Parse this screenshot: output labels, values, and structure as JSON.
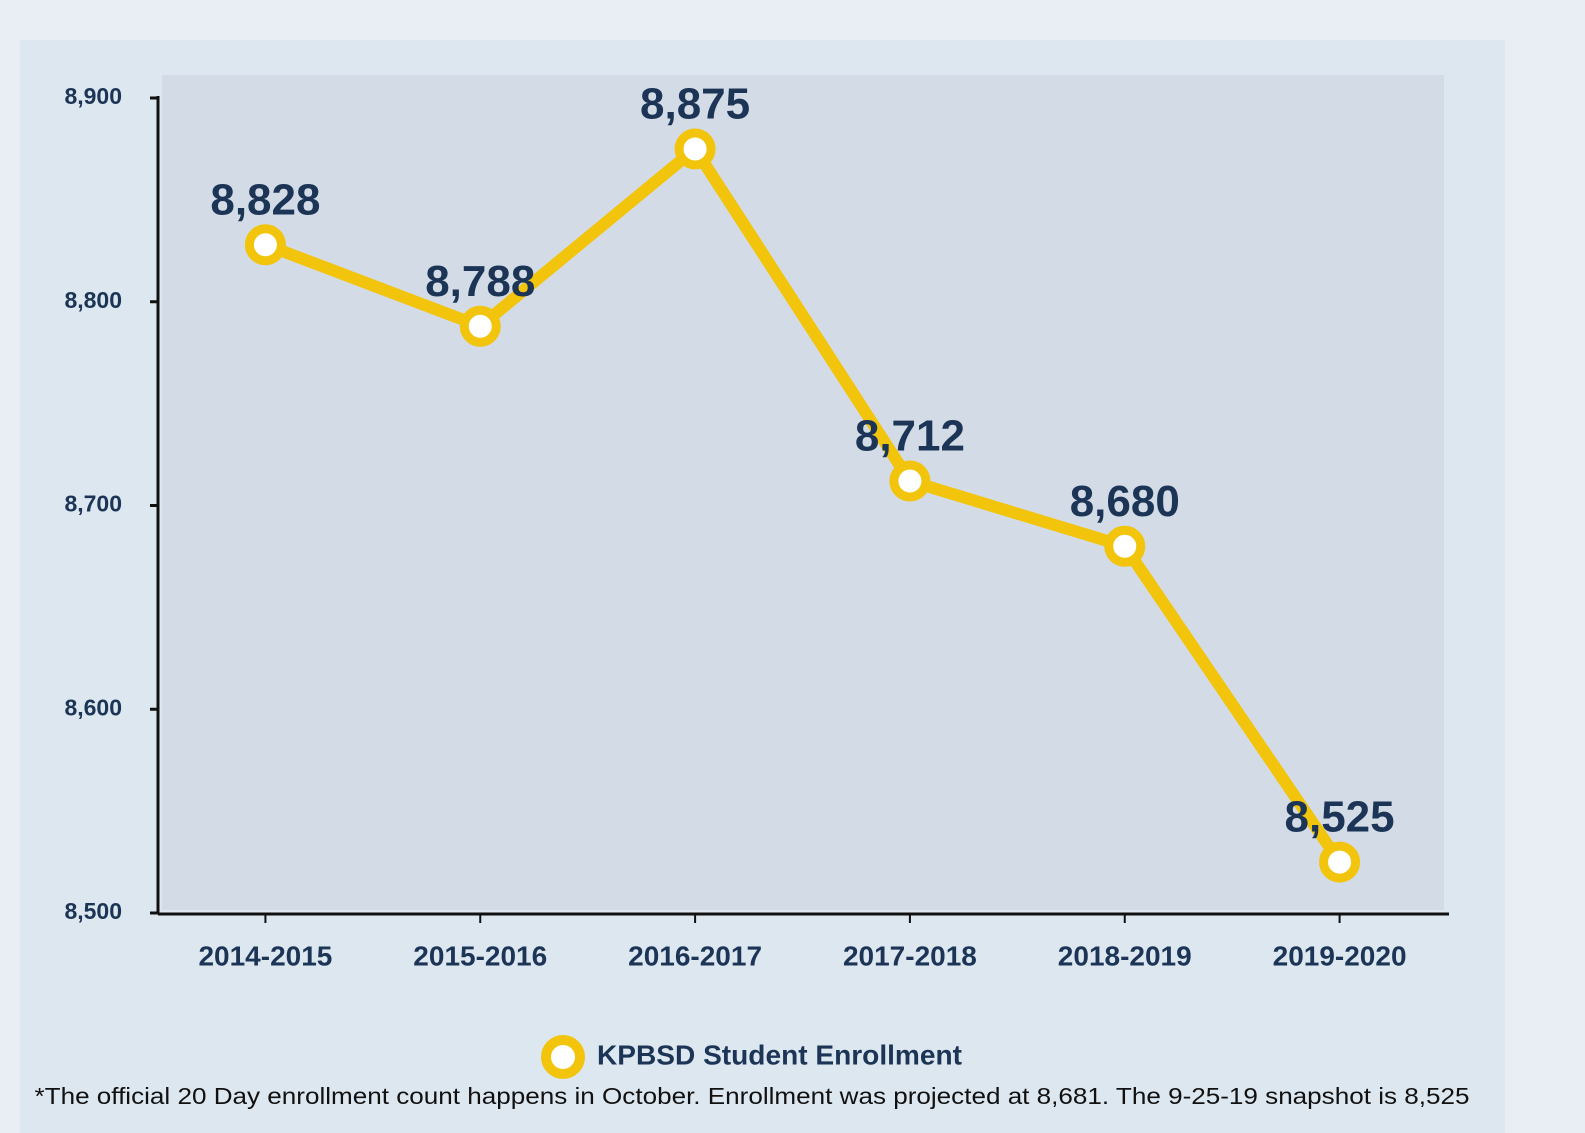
{
  "chart_data": {
    "type": "line",
    "categories": [
      "2014-2015",
      "2015-2016",
      "2016-2017",
      "2017-2018",
      "2018-2019",
      "2019-2020"
    ],
    "series": [
      {
        "name": "KPBSD Student Enrollment",
        "color": "#f2c40c",
        "values": [
          8828,
          8788,
          8875,
          8712,
          8680,
          8525
        ],
        "value_labels": [
          "8,828",
          "8,788",
          "8,875",
          "8,712",
          "8,680",
          "8,525"
        ]
      }
    ],
    "ylim": [
      8500,
      8900
    ],
    "yticks": [
      {
        "value": 8500,
        "label": "8,500"
      },
      {
        "value": 8600,
        "label": "8,600"
      },
      {
        "value": 8700,
        "label": "8,700"
      },
      {
        "value": 8800,
        "label": "8,800"
      },
      {
        "value": 8900,
        "label": "8,900"
      }
    ],
    "grid": false,
    "legend": "bottom",
    "footnote": "*The official 20 Day enrollment count happens in October. Enrollment was projected at 8,681. The 9-25-19 snapshot is 8,525"
  }
}
